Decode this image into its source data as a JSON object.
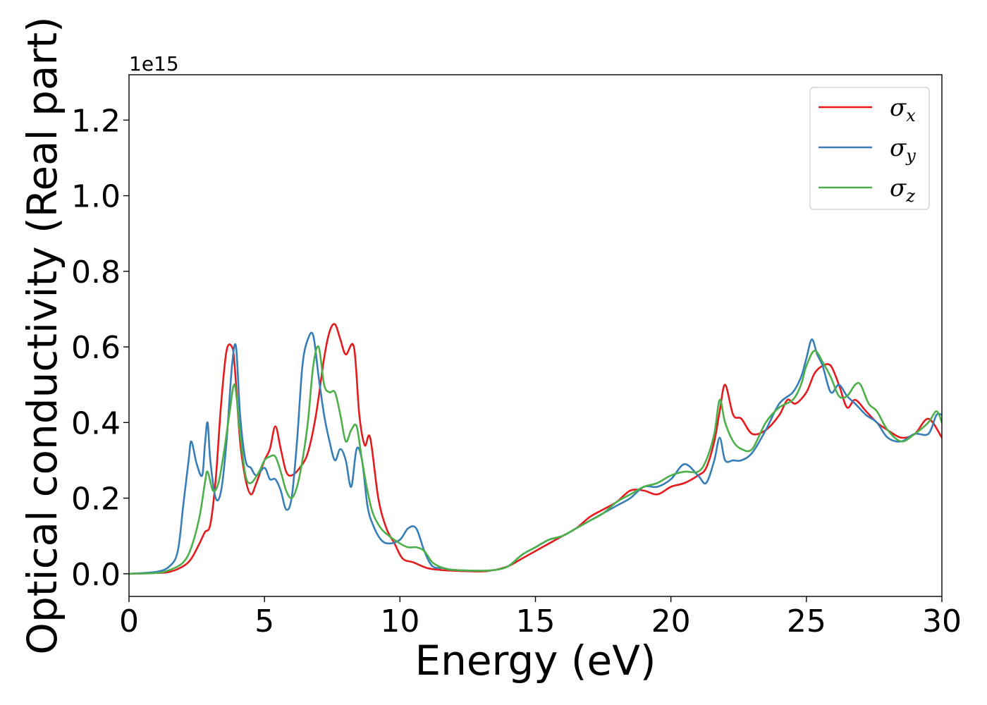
{
  "chart_data": {
    "type": "line",
    "title": "",
    "xlabel": "Energy (eV)",
    "ylabel": "Optical conductivity (Real part)",
    "y_offset_text": "1e15",
    "xlim": [
      0,
      30
    ],
    "ylim": [
      -0.06,
      1.32
    ],
    "y_scale_factor": 1000000000000000.0,
    "x_ticks": [
      0,
      5,
      10,
      15,
      20,
      25,
      30
    ],
    "x_tick_labels": [
      "0",
      "5",
      "10",
      "15",
      "20",
      "25",
      "30"
    ],
    "y_ticks": [
      0.0,
      0.2,
      0.4,
      0.6,
      0.8,
      1.0,
      1.2
    ],
    "y_tick_labels": [
      "0.0",
      "0.2",
      "0.4",
      "0.6",
      "0.8",
      "1.0",
      "1.2"
    ],
    "grid": false,
    "legend_position": "top-right",
    "series": [
      {
        "name": "σ",
        "subscript": "x",
        "color": "#e41a1c",
        "x": [
          0,
          1.0,
          1.5,
          2.0,
          2.3,
          2.6,
          2.8,
          3.0,
          3.2,
          3.4,
          3.6,
          3.8,
          3.9,
          4.1,
          4.3,
          4.5,
          4.7,
          5.0,
          5.2,
          5.4,
          5.6,
          5.8,
          6.0,
          6.3,
          6.6,
          6.9,
          7.2,
          7.4,
          7.6,
          7.8,
          8.0,
          8.3,
          8.5,
          8.7,
          8.9,
          9.2,
          9.5,
          9.8,
          10.1,
          10.5,
          11.0,
          11.5,
          12.0,
          13.0,
          13.5,
          14.0,
          14.5,
          15.0,
          15.5,
          16.0,
          16.5,
          17.0,
          17.5,
          18.0,
          18.5,
          19.0,
          19.5,
          20.0,
          20.5,
          21.0,
          21.3,
          21.6,
          21.8,
          22.0,
          22.3,
          22.6,
          23.0,
          23.5,
          24.0,
          24.3,
          24.6,
          25.0,
          25.3,
          25.6,
          25.9,
          26.2,
          26.5,
          26.8,
          27.2,
          27.6,
          28.0,
          28.5,
          29.0,
          29.5,
          30.0
        ],
        "y": [
          0.0,
          0.002,
          0.005,
          0.02,
          0.04,
          0.08,
          0.11,
          0.13,
          0.25,
          0.45,
          0.59,
          0.6,
          0.55,
          0.35,
          0.25,
          0.21,
          0.24,
          0.3,
          0.33,
          0.39,
          0.33,
          0.27,
          0.26,
          0.28,
          0.32,
          0.42,
          0.57,
          0.64,
          0.66,
          0.62,
          0.58,
          0.6,
          0.42,
          0.34,
          0.36,
          0.2,
          0.12,
          0.08,
          0.04,
          0.03,
          0.015,
          0.01,
          0.008,
          0.006,
          0.01,
          0.02,
          0.04,
          0.06,
          0.08,
          0.1,
          0.12,
          0.15,
          0.17,
          0.19,
          0.22,
          0.22,
          0.21,
          0.23,
          0.24,
          0.26,
          0.28,
          0.35,
          0.43,
          0.5,
          0.42,
          0.41,
          0.37,
          0.38,
          0.42,
          0.46,
          0.45,
          0.48,
          0.53,
          0.55,
          0.55,
          0.5,
          0.44,
          0.46,
          0.43,
          0.4,
          0.38,
          0.36,
          0.37,
          0.41,
          0.36
        ]
      },
      {
        "name": "σ",
        "subscript": "y",
        "color": "#377eb8",
        "x": [
          0,
          1.0,
          1.5,
          1.8,
          2.0,
          2.2,
          2.3,
          2.5,
          2.7,
          2.8,
          2.9,
          3.0,
          3.2,
          3.4,
          3.6,
          3.8,
          3.95,
          4.1,
          4.3,
          4.5,
          4.7,
          5.0,
          5.2,
          5.4,
          5.6,
          5.8,
          6.0,
          6.2,
          6.4,
          6.6,
          6.8,
          7.0,
          7.2,
          7.4,
          7.6,
          7.8,
          8.0,
          8.2,
          8.4,
          8.6,
          8.8,
          9.0,
          9.3,
          9.6,
          10.0,
          10.3,
          10.6,
          10.9,
          11.2,
          11.6,
          12.0,
          13.0,
          13.5,
          14.0,
          14.5,
          15.0,
          15.5,
          16.0,
          16.5,
          17.0,
          17.5,
          18.0,
          18.5,
          19.0,
          19.5,
          20.0,
          20.5,
          21.0,
          21.3,
          21.6,
          21.8,
          22.0,
          22.3,
          22.6,
          23.0,
          23.5,
          24.0,
          24.5,
          24.8,
          25.0,
          25.2,
          25.4,
          25.6,
          25.9,
          26.2,
          26.5,
          26.8,
          27.2,
          27.6,
          28.0,
          28.5,
          29.0,
          29.5,
          29.8,
          30.0
        ],
        "y": [
          0.0,
          0.005,
          0.02,
          0.06,
          0.18,
          0.3,
          0.35,
          0.29,
          0.26,
          0.34,
          0.4,
          0.3,
          0.2,
          0.22,
          0.35,
          0.55,
          0.6,
          0.42,
          0.3,
          0.28,
          0.26,
          0.28,
          0.25,
          0.25,
          0.22,
          0.17,
          0.2,
          0.35,
          0.55,
          0.62,
          0.63,
          0.52,
          0.42,
          0.35,
          0.3,
          0.33,
          0.3,
          0.23,
          0.33,
          0.3,
          0.18,
          0.13,
          0.09,
          0.08,
          0.09,
          0.12,
          0.12,
          0.06,
          0.02,
          0.015,
          0.01,
          0.008,
          0.01,
          0.02,
          0.05,
          0.07,
          0.09,
          0.1,
          0.12,
          0.14,
          0.16,
          0.18,
          0.2,
          0.23,
          0.23,
          0.25,
          0.29,
          0.26,
          0.24,
          0.3,
          0.36,
          0.3,
          0.3,
          0.3,
          0.32,
          0.38,
          0.45,
          0.48,
          0.52,
          0.57,
          0.62,
          0.58,
          0.55,
          0.48,
          0.5,
          0.47,
          0.45,
          0.42,
          0.4,
          0.36,
          0.35,
          0.37,
          0.37,
          0.42,
          0.42
        ]
      },
      {
        "name": "σ",
        "subscript": "z",
        "color": "#4daf4a",
        "x": [
          0,
          1.0,
          1.5,
          2.0,
          2.3,
          2.6,
          2.8,
          2.9,
          3.1,
          3.3,
          3.5,
          3.7,
          3.9,
          4.1,
          4.3,
          4.5,
          4.8,
          5.0,
          5.2,
          5.4,
          5.6,
          5.8,
          6.0,
          6.2,
          6.4,
          6.6,
          6.8,
          7.0,
          7.2,
          7.4,
          7.6,
          7.8,
          8.0,
          8.2,
          8.4,
          8.6,
          8.8,
          9.0,
          9.3,
          9.6,
          10.0,
          10.3,
          10.6,
          10.9,
          11.2,
          11.6,
          12.0,
          13.0,
          13.5,
          14.0,
          14.5,
          15.0,
          15.5,
          16.0,
          16.5,
          17.0,
          17.5,
          18.0,
          18.5,
          19.0,
          19.5,
          20.0,
          20.5,
          21.0,
          21.3,
          21.6,
          21.8,
          22.0,
          22.3,
          22.6,
          23.0,
          23.5,
          24.0,
          24.5,
          24.8,
          25.0,
          25.3,
          25.6,
          25.9,
          26.2,
          26.5,
          26.8,
          27.0,
          27.3,
          27.6,
          28.0,
          28.5,
          29.0,
          29.5,
          29.8,
          30.0
        ],
        "y": [
          0.0,
          0.002,
          0.01,
          0.03,
          0.07,
          0.15,
          0.24,
          0.27,
          0.22,
          0.24,
          0.32,
          0.42,
          0.5,
          0.37,
          0.26,
          0.24,
          0.27,
          0.3,
          0.31,
          0.31,
          0.27,
          0.22,
          0.2,
          0.23,
          0.3,
          0.4,
          0.55,
          0.6,
          0.5,
          0.48,
          0.48,
          0.42,
          0.35,
          0.38,
          0.39,
          0.3,
          0.22,
          0.16,
          0.12,
          0.1,
          0.08,
          0.07,
          0.07,
          0.06,
          0.03,
          0.015,
          0.01,
          0.008,
          0.01,
          0.02,
          0.05,
          0.07,
          0.09,
          0.1,
          0.12,
          0.14,
          0.16,
          0.19,
          0.21,
          0.23,
          0.24,
          0.26,
          0.27,
          0.27,
          0.3,
          0.37,
          0.46,
          0.4,
          0.35,
          0.33,
          0.33,
          0.4,
          0.44,
          0.46,
          0.5,
          0.55,
          0.59,
          0.56,
          0.52,
          0.47,
          0.47,
          0.5,
          0.5,
          0.45,
          0.43,
          0.38,
          0.35,
          0.37,
          0.4,
          0.43,
          0.4
        ]
      }
    ]
  }
}
